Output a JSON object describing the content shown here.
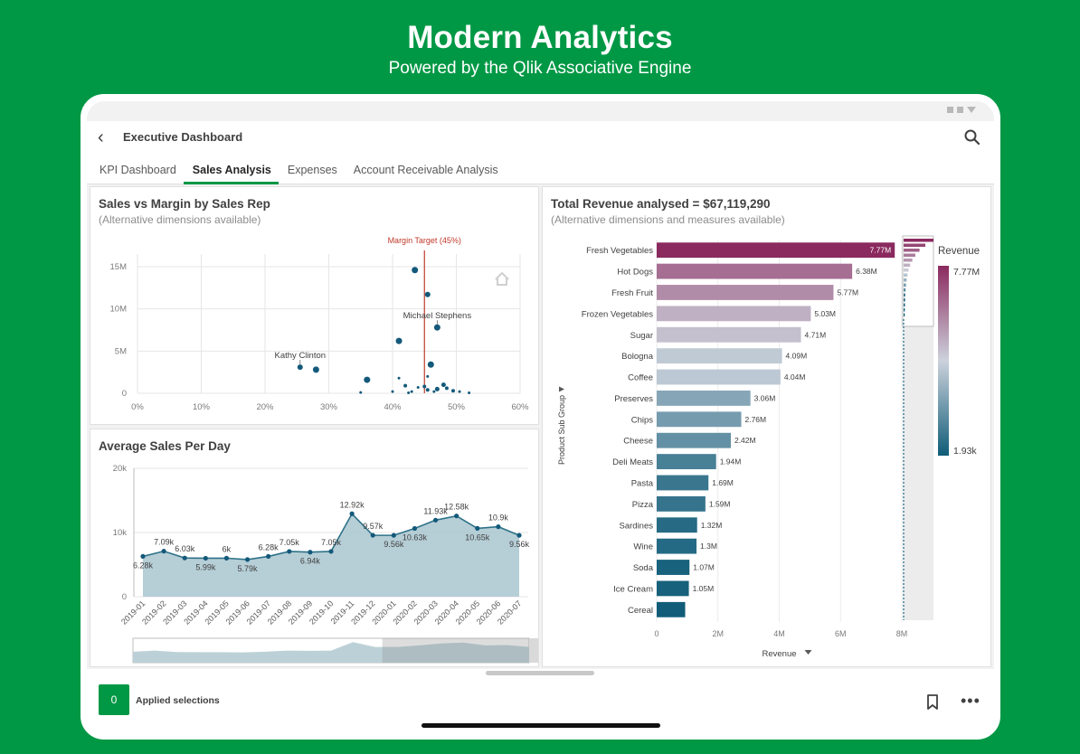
{
  "hero": {
    "title": "Modern Analytics",
    "subtitle": "Powered by the Qlik Associative Engine"
  },
  "app": {
    "title": "Executive Dashboard",
    "tabs": [
      {
        "label": "KPI Dashboard",
        "active": false
      },
      {
        "label": "Sales Analysis",
        "active": true
      },
      {
        "label": "Expenses",
        "active": false
      },
      {
        "label": "Account Receivable Analysis",
        "active": false
      }
    ]
  },
  "scatter": {
    "title": "Sales vs Margin by Sales Rep",
    "subtitle": "(Alternative dimensions available)"
  },
  "line": {
    "title": "Average Sales Per Day"
  },
  "bar": {
    "title": "Total Revenue analysed = $67,119,290",
    "subtitle": "(Alternative dimensions and measures available)"
  },
  "footer": {
    "count": "0",
    "label": "Applied selections"
  },
  "chart_data": [
    {
      "type": "scatter",
      "title": "Sales vs Margin by Sales Rep",
      "x_ticks": [
        "0%",
        "10%",
        "20%",
        "30%",
        "40%",
        "50%",
        "60%"
      ],
      "y_ticks": [
        "0",
        "5M",
        "10M",
        "15M"
      ],
      "xlim": [
        0,
        0.6
      ],
      "ylim": [
        0,
        16.5
      ],
      "reference_line": {
        "label": "Margin Target (45%)",
        "x": 0.45,
        "color": "#c0392b"
      },
      "points": [
        {
          "x": 0.435,
          "y": 14.6,
          "r": 3.5
        },
        {
          "x": 0.455,
          "y": 11.7,
          "r": 3
        },
        {
          "x": 0.47,
          "y": 7.8,
          "r": 3.5,
          "label": "Michael Stephens"
        },
        {
          "x": 0.41,
          "y": 6.2,
          "r": 3.5
        },
        {
          "x": 0.255,
          "y": 3.1,
          "r": 3,
          "label": "Kathy Clinton"
        },
        {
          "x": 0.28,
          "y": 2.8,
          "r": 3.5
        },
        {
          "x": 0.46,
          "y": 3.4,
          "r": 3.5
        },
        {
          "x": 0.36,
          "y": 1.6,
          "r": 3.5
        },
        {
          "x": 0.41,
          "y": 1.8,
          "r": 1.5
        },
        {
          "x": 0.455,
          "y": 2.0,
          "r": 1.5
        },
        {
          "x": 0.42,
          "y": 0.9,
          "r": 2
        },
        {
          "x": 0.44,
          "y": 0.7,
          "r": 1.5
        },
        {
          "x": 0.45,
          "y": 0.8,
          "r": 2
        },
        {
          "x": 0.47,
          "y": 0.5,
          "r": 2.5
        },
        {
          "x": 0.48,
          "y": 1.0,
          "r": 2.5
        },
        {
          "x": 0.485,
          "y": 0.6,
          "r": 2
        },
        {
          "x": 0.495,
          "y": 0.3,
          "r": 2
        },
        {
          "x": 0.505,
          "y": 0.2,
          "r": 1.5
        },
        {
          "x": 0.465,
          "y": 0.2,
          "r": 1.5
        },
        {
          "x": 0.455,
          "y": 0.4,
          "r": 2
        },
        {
          "x": 0.43,
          "y": 0.2,
          "r": 1.5
        },
        {
          "x": 0.4,
          "y": 0.2,
          "r": 1.5
        },
        {
          "x": 0.35,
          "y": 0.1,
          "r": 1.5
        },
        {
          "x": 0.52,
          "y": 0.05,
          "r": 1.5
        },
        {
          "x": 0.425,
          "y": 0.05,
          "r": 1.5
        }
      ]
    },
    {
      "type": "area",
      "title": "Average Sales Per Day",
      "categories": [
        "2019-01",
        "2019-02",
        "2019-03",
        "2019-04",
        "2019-05",
        "2019-06",
        "2019-07",
        "2019-08",
        "2019-09",
        "2019-10",
        "2019-11",
        "2019-12",
        "2020-01",
        "2020-02",
        "2020-03",
        "2020-04",
        "2020-05",
        "2020-06",
        "2020-07"
      ],
      "values": [
        6.28,
        7.09,
        6.03,
        5.99,
        6.0,
        5.79,
        6.28,
        7.05,
        6.94,
        7.05,
        12.92,
        9.57,
        9.56,
        10.63,
        11.93,
        12.58,
        10.65,
        10.9,
        9.56
      ],
      "labels": [
        "6.28k",
        "7.09k",
        "6.03k",
        "5.99k",
        "6k",
        "5.79k",
        "6.28k",
        "7.05k",
        "6.94k",
        "7.05k",
        "12.92k",
        "9.57k",
        "9.56k",
        "10.63k",
        "11.93k",
        "12.58k",
        "10.65k",
        "10.9k",
        "9.56k"
      ],
      "label_pos": [
        "below",
        "above",
        "above",
        "below",
        "above",
        "below",
        "above",
        "above",
        "below",
        "above",
        "above",
        "above",
        "below",
        "below",
        "above",
        "above",
        "below",
        "above",
        "below"
      ],
      "y_ticks": [
        "0",
        "10k",
        "20k"
      ],
      "ylim": [
        0,
        20
      ],
      "mini_chart_selected_to": "2019-12"
    },
    {
      "type": "bar",
      "orientation": "horizontal",
      "categories": [
        "Fresh Vegetables",
        "Hot Dogs",
        "Fresh Fruit",
        "Frozen Vegetables",
        "Sugar",
        "Bologna",
        "Coffee",
        "Preserves",
        "Chips",
        "Cheese",
        "Deli Meats",
        "Pasta",
        "Pizza",
        "Sardines",
        "Wine",
        "Soda",
        "Ice Cream",
        "Cereal"
      ],
      "values": [
        7.77,
        6.38,
        5.77,
        5.03,
        4.71,
        4.09,
        4.04,
        3.06,
        2.76,
        2.42,
        1.94,
        1.69,
        1.59,
        1.32,
        1.3,
        1.07,
        1.05,
        0.93
      ],
      "labels": [
        "7.77M",
        "6.38M",
        "5.77M",
        "5.03M",
        "4.71M",
        "4.09M",
        "4.04M",
        "3.06M",
        "2.76M",
        "2.42M",
        "1.94M",
        "1.69M",
        "1.59M",
        "1.32M",
        "1.3M",
        "1.07M",
        "1.05M",
        ""
      ],
      "x_ticks": [
        "0",
        "2M",
        "4M",
        "6M",
        "8M"
      ],
      "xlim": [
        0,
        8
      ],
      "xlabel": "Revenue",
      "ylabel": "Product Sub Group",
      "legend": {
        "title": "Revenue",
        "max_label": "7.77M",
        "min_label": "1.93k",
        "position": "right"
      },
      "color_high": "#8b2a5f",
      "color_mid": "#ccd2dc",
      "color_low": "#0f5c78"
    }
  ]
}
